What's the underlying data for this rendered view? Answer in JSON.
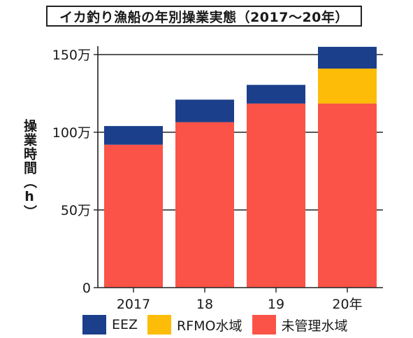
{
  "chart_data": {
    "type": "bar",
    "stacked": true,
    "title": "イカ釣り漁船の年別操業実態（2017〜20年）",
    "ylabel": "操業時間（h）",
    "xlabel": "",
    "categories": [
      "2017",
      "18",
      "19",
      "20年"
    ],
    "ylim": [
      0,
      1550000
    ],
    "y_ticks": [
      0,
      500000,
      1000000,
      1500000
    ],
    "y_tick_labels": [
      "0",
      "50万",
      "100万",
      "150万"
    ],
    "grid": "horizontal",
    "legend_position": "bottom",
    "series": [
      {
        "name": "未管理水域",
        "color": "#fb5347",
        "values": [
          920000,
          1065000,
          1185000,
          1185000
        ]
      },
      {
        "name": "RFMO水域",
        "color": "#fdbc08",
        "values": [
          0,
          0,
          0,
          225000
        ]
      },
      {
        "name": "EEZ",
        "color": "#1b3f8b",
        "values": [
          120000,
          145000,
          120000,
          140000
        ]
      }
    ],
    "legend_order": [
      "EEZ",
      "RFMO水域",
      "未管理水域"
    ]
  }
}
